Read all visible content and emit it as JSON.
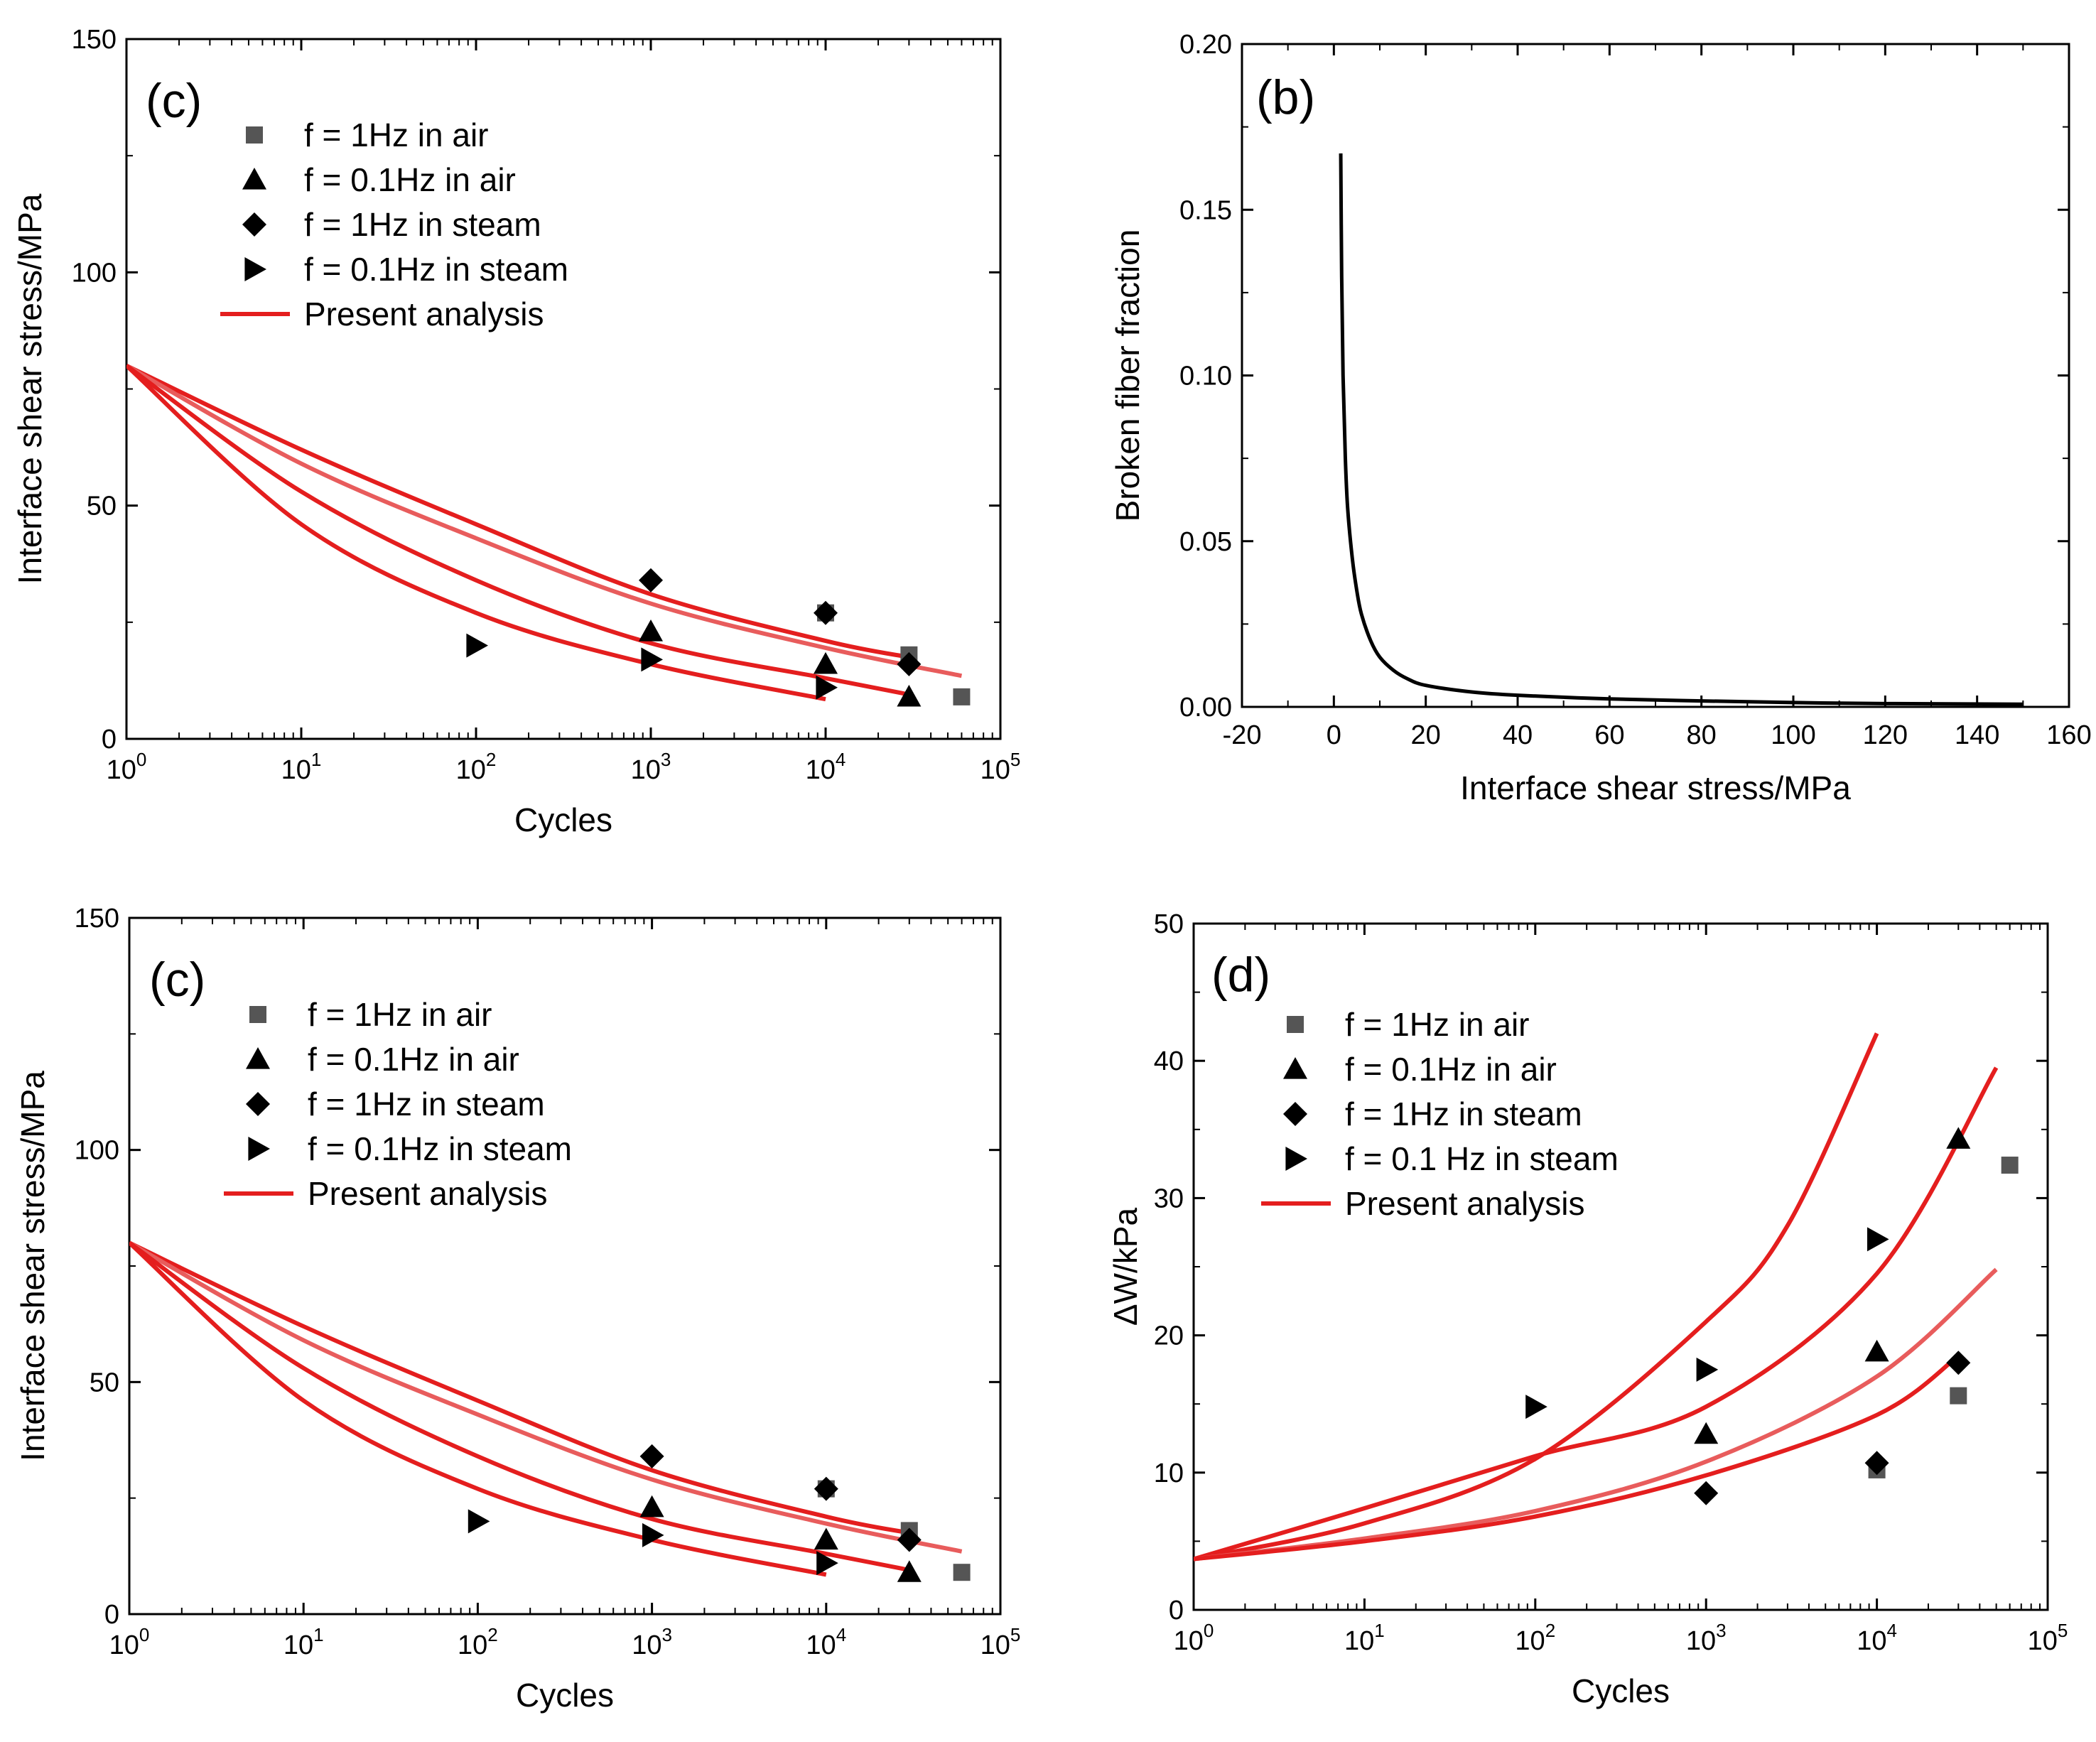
{
  "colors": {
    "curve": "#e41e1e",
    "curve_light": "#e85c5c",
    "marker": "#000000",
    "marker_square": "#555555",
    "axis": "#000000"
  },
  "chart_data": [
    {
      "id": "panel_tl",
      "panel_label": "(c)",
      "type": "scatter",
      "xscale": "log",
      "xlim": [
        1,
        100000
      ],
      "ylim": [
        0,
        150
      ],
      "xlabel": "Cycles",
      "ylabel": "Interface shear stress/MPa",
      "xticks": [
        {
          "v": 1,
          "b": "10",
          "e": "0"
        },
        {
          "v": 10,
          "b": "10",
          "e": "1"
        },
        {
          "v": 100,
          "b": "10",
          "e": "2"
        },
        {
          "v": 1000,
          "b": "10",
          "e": "3"
        },
        {
          "v": 10000,
          "b": "10",
          "e": "4"
        },
        {
          "v": 100000,
          "b": "10",
          "e": "5"
        }
      ],
      "yticks": [
        0,
        50,
        100,
        150
      ],
      "legend_position": "upper-middle",
      "legend": [
        {
          "marker": "square",
          "label": "f = 1Hz in air"
        },
        {
          "marker": "triangle",
          "label": "f = 0.1Hz in air"
        },
        {
          "marker": "diamond",
          "label": "f = 1Hz in steam"
        },
        {
          "marker": "right-triangle",
          "label": "f = 0.1Hz in steam"
        },
        {
          "marker": "line",
          "label": "Present analysis"
        }
      ],
      "series": [
        {
          "name": "f = 1Hz in air",
          "marker": "square",
          "points": [
            [
              10000,
              27
            ],
            [
              30000,
              18
            ],
            [
              60000,
              9
            ]
          ]
        },
        {
          "name": "f = 0.1Hz in air",
          "marker": "triangle",
          "points": [
            [
              1000,
              23
            ],
            [
              10000,
              16
            ],
            [
              30000,
              9
            ]
          ]
        },
        {
          "name": "f = 1Hz in steam",
          "marker": "diamond",
          "points": [
            [
              1000,
              34
            ],
            [
              10000,
              27
            ],
            [
              30000,
              16
            ]
          ]
        },
        {
          "name": "f = 0.1Hz in steam",
          "marker": "right-triangle",
          "points": [
            [
              100,
              20
            ],
            [
              1000,
              17
            ],
            [
              10000,
              11
            ]
          ]
        }
      ],
      "lines": [
        {
          "name": "Present analysis 1",
          "shade": "curve",
          "points": [
            [
              1,
              80
            ],
            [
              10,
              62
            ],
            [
              100,
              46
            ],
            [
              1000,
              31
            ],
            [
              10000,
              21
            ],
            [
              30000,
              17.5
            ]
          ]
        },
        {
          "name": "Present analysis 2",
          "shade": "curve_light",
          "points": [
            [
              1,
              80
            ],
            [
              10,
              59
            ],
            [
              100,
              43
            ],
            [
              1000,
              29
            ],
            [
              10000,
              19.5
            ],
            [
              60000,
              13.5
            ]
          ]
        },
        {
          "name": "Present analysis 3",
          "shade": "curve",
          "points": [
            [
              1,
              80
            ],
            [
              10,
              53
            ],
            [
              100,
              34
            ],
            [
              1000,
              20.5
            ],
            [
              10000,
              13
            ],
            [
              30000,
              9.5
            ]
          ]
        },
        {
          "name": "Present analysis 4",
          "shade": "curve",
          "points": [
            [
              1,
              80
            ],
            [
              10,
              46
            ],
            [
              100,
              27
            ],
            [
              1000,
              16
            ],
            [
              10000,
              8.5
            ]
          ]
        }
      ]
    },
    {
      "id": "panel_tr",
      "panel_label": "(b)",
      "type": "line",
      "xscale": "linear",
      "xlim": [
        -20,
        160
      ],
      "ylim": [
        0,
        0.2
      ],
      "xlabel": "Interface shear stress/MPa",
      "ylabel": "Broken fiber fraction",
      "xticks": [
        {
          "v": -20,
          "t": "-20"
        },
        {
          "v": 0,
          "t": "0"
        },
        {
          "v": 20,
          "t": "20"
        },
        {
          "v": 40,
          "t": "40"
        },
        {
          "v": 60,
          "t": "60"
        },
        {
          "v": 80,
          "t": "80"
        },
        {
          "v": 100,
          "t": "100"
        },
        {
          "v": 120,
          "t": "120"
        },
        {
          "v": 140,
          "t": "140"
        },
        {
          "v": 160,
          "t": "160"
        }
      ],
      "yticks": [
        {
          "v": 0,
          "t": "0.00"
        },
        {
          "v": 0.05,
          "t": "0.05"
        },
        {
          "v": 0.1,
          "t": "0.10"
        },
        {
          "v": 0.15,
          "t": "0.15"
        },
        {
          "v": 0.2,
          "t": "0.20"
        }
      ],
      "lines": [
        {
          "name": "Broken fiber fraction",
          "shade": "marker",
          "points": [
            [
              1.5,
              0.167
            ],
            [
              1.7,
              0.13
            ],
            [
              2,
              0.1
            ],
            [
              2.5,
              0.075
            ],
            [
              3,
              0.06
            ],
            [
              4,
              0.045
            ],
            [
              5,
              0.035
            ],
            [
              6,
              0.028
            ],
            [
              8,
              0.02
            ],
            [
              10,
              0.015
            ],
            [
              13,
              0.011
            ],
            [
              16,
              0.0085
            ],
            [
              20,
              0.0065
            ],
            [
              30,
              0.0045
            ],
            [
              40,
              0.0035
            ],
            [
              60,
              0.0024
            ],
            [
              80,
              0.0018
            ],
            [
              100,
              0.0013
            ],
            [
              120,
              0.001
            ],
            [
              150,
              0.0008
            ]
          ]
        }
      ]
    },
    {
      "id": "panel_bl",
      "panel_label": "(c)",
      "type": "scatter",
      "xscale": "log",
      "xlim": [
        1,
        100000
      ],
      "ylim": [
        0,
        150
      ],
      "xlabel": "Cycles",
      "ylabel": "Interface shear stress/MPa",
      "xticks": [
        {
          "v": 1,
          "b": "10",
          "e": "0"
        },
        {
          "v": 10,
          "b": "10",
          "e": "1"
        },
        {
          "v": 100,
          "b": "10",
          "e": "2"
        },
        {
          "v": 1000,
          "b": "10",
          "e": "3"
        },
        {
          "v": 10000,
          "b": "10",
          "e": "4"
        },
        {
          "v": 100000,
          "b": "10",
          "e": "5"
        }
      ],
      "yticks": [
        0,
        50,
        100,
        150
      ],
      "legend_position": "upper-middle",
      "legend": [
        {
          "marker": "square",
          "label": "f = 1Hz in air"
        },
        {
          "marker": "triangle",
          "label": "f = 0.1Hz in air"
        },
        {
          "marker": "diamond",
          "label": "f = 1Hz in steam"
        },
        {
          "marker": "right-triangle",
          "label": "f = 0.1Hz in steam"
        },
        {
          "marker": "line",
          "label": "Present analysis"
        }
      ],
      "series": [
        {
          "name": "f = 1Hz in air",
          "marker": "square",
          "points": [
            [
              10000,
              27
            ],
            [
              30000,
              18
            ],
            [
              60000,
              9
            ]
          ]
        },
        {
          "name": "f = 0.1Hz in air",
          "marker": "triangle",
          "points": [
            [
              1000,
              23
            ],
            [
              10000,
              16
            ],
            [
              30000,
              9
            ]
          ]
        },
        {
          "name": "f = 1Hz in steam",
          "marker": "diamond",
          "points": [
            [
              1000,
              34
            ],
            [
              10000,
              27
            ],
            [
              30000,
              16
            ]
          ]
        },
        {
          "name": "f = 0.1Hz in steam",
          "marker": "right-triangle",
          "points": [
            [
              100,
              20
            ],
            [
              1000,
              17
            ],
            [
              10000,
              11
            ]
          ]
        }
      ],
      "lines": [
        {
          "name": "Present analysis 1",
          "shade": "curve",
          "points": [
            [
              1,
              80
            ],
            [
              10,
              62
            ],
            [
              100,
              46
            ],
            [
              1000,
              31
            ],
            [
              10000,
              21
            ],
            [
              30000,
              17.5
            ]
          ]
        },
        {
          "name": "Present analysis 2",
          "shade": "curve_light",
          "points": [
            [
              1,
              80
            ],
            [
              10,
              59
            ],
            [
              100,
              43
            ],
            [
              1000,
              29
            ],
            [
              10000,
              19.5
            ],
            [
              60000,
              13.5
            ]
          ]
        },
        {
          "name": "Present analysis 3",
          "shade": "curve",
          "points": [
            [
              1,
              80
            ],
            [
              10,
              53
            ],
            [
              100,
              34
            ],
            [
              1000,
              20.5
            ],
            [
              10000,
              13
            ],
            [
              30000,
              9.5
            ]
          ]
        },
        {
          "name": "Present analysis 4",
          "shade": "curve",
          "points": [
            [
              1,
              80
            ],
            [
              10,
              46
            ],
            [
              100,
              27
            ],
            [
              1000,
              16
            ],
            [
              10000,
              8.5
            ]
          ]
        }
      ]
    },
    {
      "id": "panel_br",
      "panel_label": "(d)",
      "type": "scatter",
      "xscale": "log",
      "xlim": [
        1,
        100000
      ],
      "ylim": [
        0,
        50
      ],
      "xlabel": "Cycles",
      "ylabel": "ΔW/kPa",
      "xticks": [
        {
          "v": 1,
          "b": "10",
          "e": "0"
        },
        {
          "v": 10,
          "b": "10",
          "e": "1"
        },
        {
          "v": 100,
          "b": "10",
          "e": "2"
        },
        {
          "v": 1000,
          "b": "10",
          "e": "3"
        },
        {
          "v": 10000,
          "b": "10",
          "e": "4"
        },
        {
          "v": 100000,
          "b": "10",
          "e": "5"
        }
      ],
      "yticks": [
        0,
        10,
        20,
        30,
        40,
        50
      ],
      "legend_position": "upper-middle",
      "legend": [
        {
          "marker": "square",
          "label": "f = 1Hz in air"
        },
        {
          "marker": "triangle",
          "label": "f = 0.1Hz in air"
        },
        {
          "marker": "diamond",
          "label": "f = 1Hz in steam"
        },
        {
          "marker": "right-triangle",
          "label": "f = 0.1 Hz in steam"
        },
        {
          "marker": "line",
          "label": "Present analysis"
        }
      ],
      "series": [
        {
          "name": "f = 1Hz in air",
          "marker": "square",
          "points": [
            [
              10000,
              10.2
            ],
            [
              30000,
              15.6
            ],
            [
              60000,
              32.4
            ]
          ]
        },
        {
          "name": "f = 0.1Hz in air",
          "marker": "triangle",
          "points": [
            [
              1000,
              12.8
            ],
            [
              10000,
              18.8
            ],
            [
              30000,
              34.3
            ]
          ]
        },
        {
          "name": "f = 1Hz in steam",
          "marker": "diamond",
          "points": [
            [
              1000,
              8.5
            ],
            [
              10000,
              10.7
            ],
            [
              30000,
              18
            ]
          ]
        },
        {
          "name": "f = 0.1 Hz in steam",
          "marker": "right-triangle",
          "points": [
            [
              100,
              14.8
            ],
            [
              1000,
              17.5
            ],
            [
              10000,
              27
            ]
          ]
        }
      ],
      "lines": [
        {
          "name": "Present analysis 1",
          "shade": "curve",
          "points": [
            [
              1,
              3.7
            ],
            [
              10,
              6.3
            ],
            [
              100,
              11
            ],
            [
              1000,
              21
            ],
            [
              3000,
              28
            ],
            [
              10000,
              42
            ]
          ]
        },
        {
          "name": "Present analysis 2",
          "shade": "curve",
          "points": [
            [
              1,
              3.7
            ],
            [
              10,
              7.4
            ],
            [
              100,
              11.2
            ],
            [
              1000,
              14.8
            ],
            [
              10000,
              24.5
            ],
            [
              50000,
              39.5
            ]
          ]
        },
        {
          "name": "Present analysis 3",
          "shade": "curve_light",
          "points": [
            [
              1,
              3.7
            ],
            [
              10,
              5.2
            ],
            [
              100,
              7.2
            ],
            [
              1000,
              10.8
            ],
            [
              10000,
              17
            ],
            [
              50000,
              24.8
            ]
          ]
        },
        {
          "name": "Present analysis 4",
          "shade": "curve",
          "points": [
            [
              1,
              3.7
            ],
            [
              10,
              5
            ],
            [
              100,
              6.8
            ],
            [
              1000,
              9.8
            ],
            [
              10000,
              14.2
            ],
            [
              30000,
              18.5
            ]
          ]
        }
      ]
    }
  ]
}
